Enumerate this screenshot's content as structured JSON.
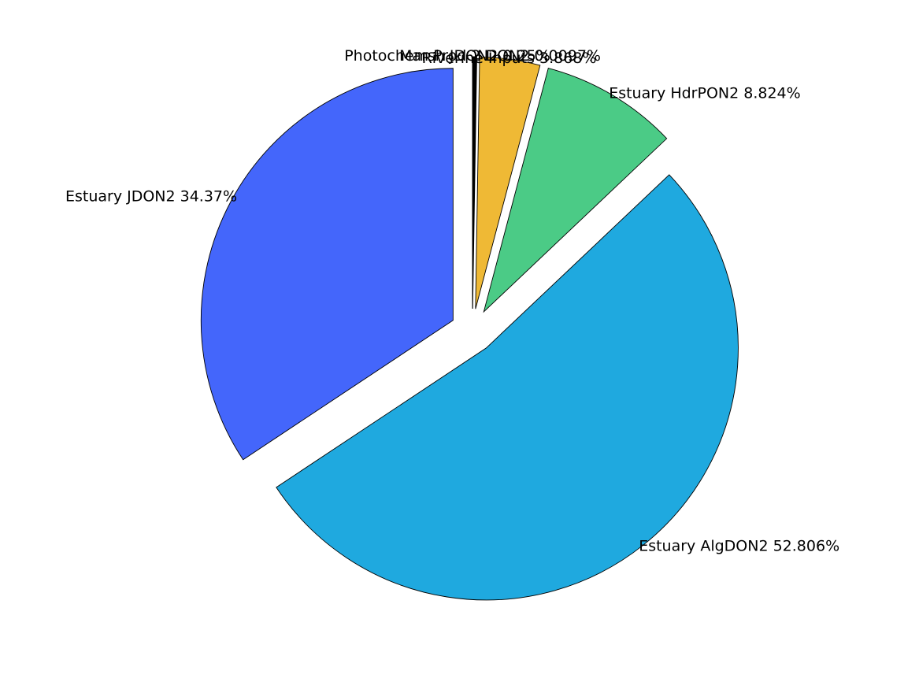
{
  "chart_data": {
    "type": "pie",
    "start": "top",
    "direction": "clockwise",
    "exploded": true,
    "slices": [
      {
        "label": "Photochem Prod 2 DON2",
        "value_pct": 0.0097,
        "text": "Photochem Prod 2 DON2 0.0097%",
        "color": "#1a1a1a"
      },
      {
        "label": "Marsh JDON2",
        "value_pct": 0.25,
        "text": "Marsh JDON2 0.25%",
        "color": "#000000"
      },
      {
        "label": "Riverine Inputs",
        "value_pct": 3.868,
        "text": "Riverine Inputs 3.868%",
        "color": "#efb935"
      },
      {
        "label": "Estuary HdrPON2",
        "value_pct": 8.824,
        "text": "Estuary HdrPON2 8.824%",
        "color": "#4bcb86"
      },
      {
        "label": "Estuary AlgDON2",
        "value_pct": 52.806,
        "text": "Estuary AlgDON2 52.806%",
        "color": "#1fa9df"
      },
      {
        "label": "Estuary JDON2",
        "value_pct": 34.37,
        "text": "Estuary JDON2 34.37%",
        "color": "#4466fb"
      }
    ]
  }
}
